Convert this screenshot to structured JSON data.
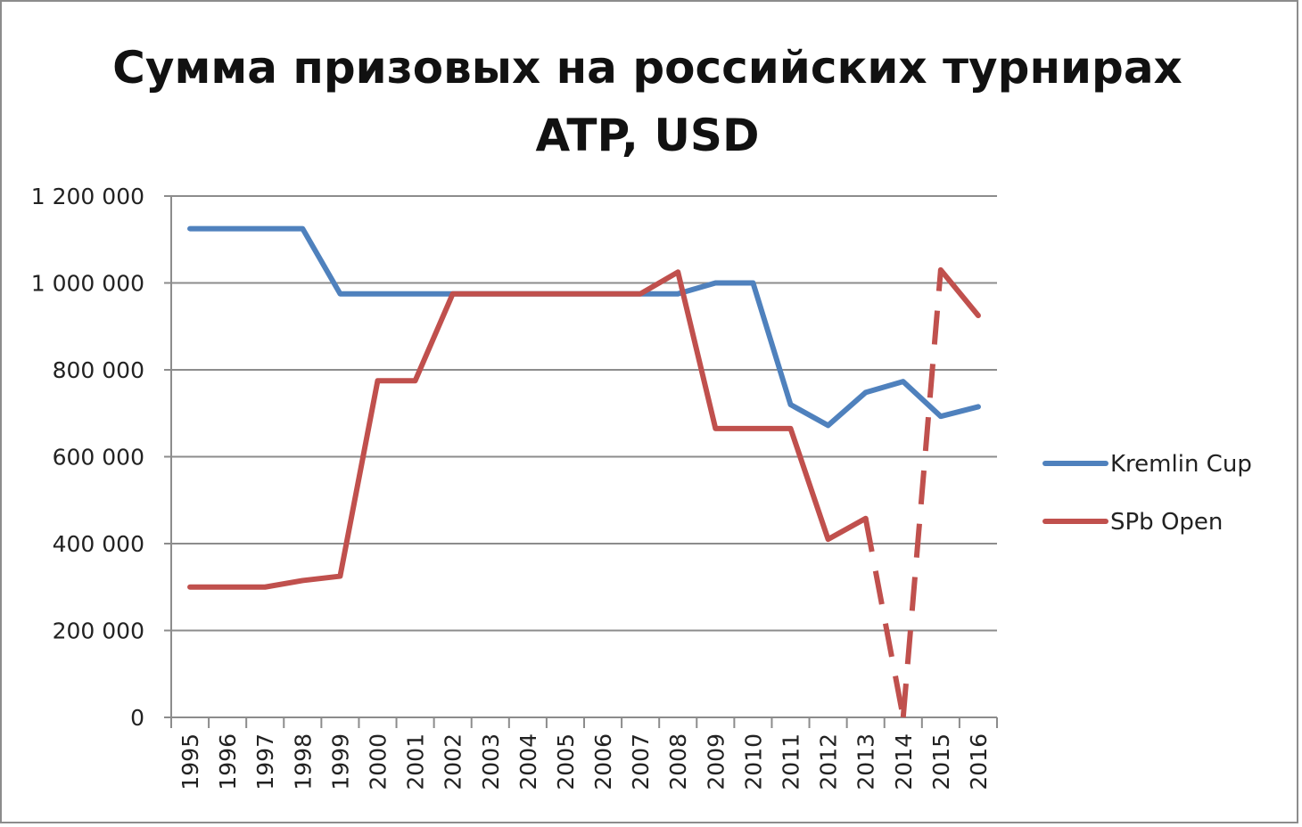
{
  "chart_data": {
    "type": "line",
    "title_lines": [
      "Сумма призовых на российских турнирах",
      "ATP, USD"
    ],
    "categories": [
      "1995",
      "1996",
      "1997",
      "1998",
      "1999",
      "2000",
      "2001",
      "2002",
      "2003",
      "2004",
      "2005",
      "2006",
      "2007",
      "2008",
      "2009",
      "2010",
      "2011",
      "2012",
      "2013",
      "2014",
      "2015",
      "2016"
    ],
    "y_ticks": [
      "0",
      "200 000",
      "400 000",
      "600 000",
      "800 000",
      "1 000 000",
      "1 200 000"
    ],
    "ylim": [
      0,
      1200000
    ],
    "grid": true,
    "legend_position": "right",
    "series": [
      {
        "name": "Kremlin Cup",
        "color": "#4f81bd",
        "values": [
          1125000,
          1125000,
          1125000,
          1125000,
          975000,
          975000,
          975000,
          975000,
          975000,
          975000,
          975000,
          975000,
          975000,
          975000,
          1000000,
          1000000,
          720000,
          672000,
          748000,
          773000,
          693000,
          715000
        ]
      },
      {
        "name": "SPb Open",
        "color": "#c0504d",
        "values": [
          300000,
          300000,
          300000,
          315000,
          325000,
          775000,
          775000,
          975000,
          975000,
          975000,
          975000,
          975000,
          975000,
          1025000,
          665000,
          665000,
          665000,
          410000,
          458000,
          0,
          1030000,
          925000
        ],
        "dashed_segments": [
          [
            18,
            19
          ],
          [
            19,
            20
          ]
        ]
      }
    ]
  }
}
